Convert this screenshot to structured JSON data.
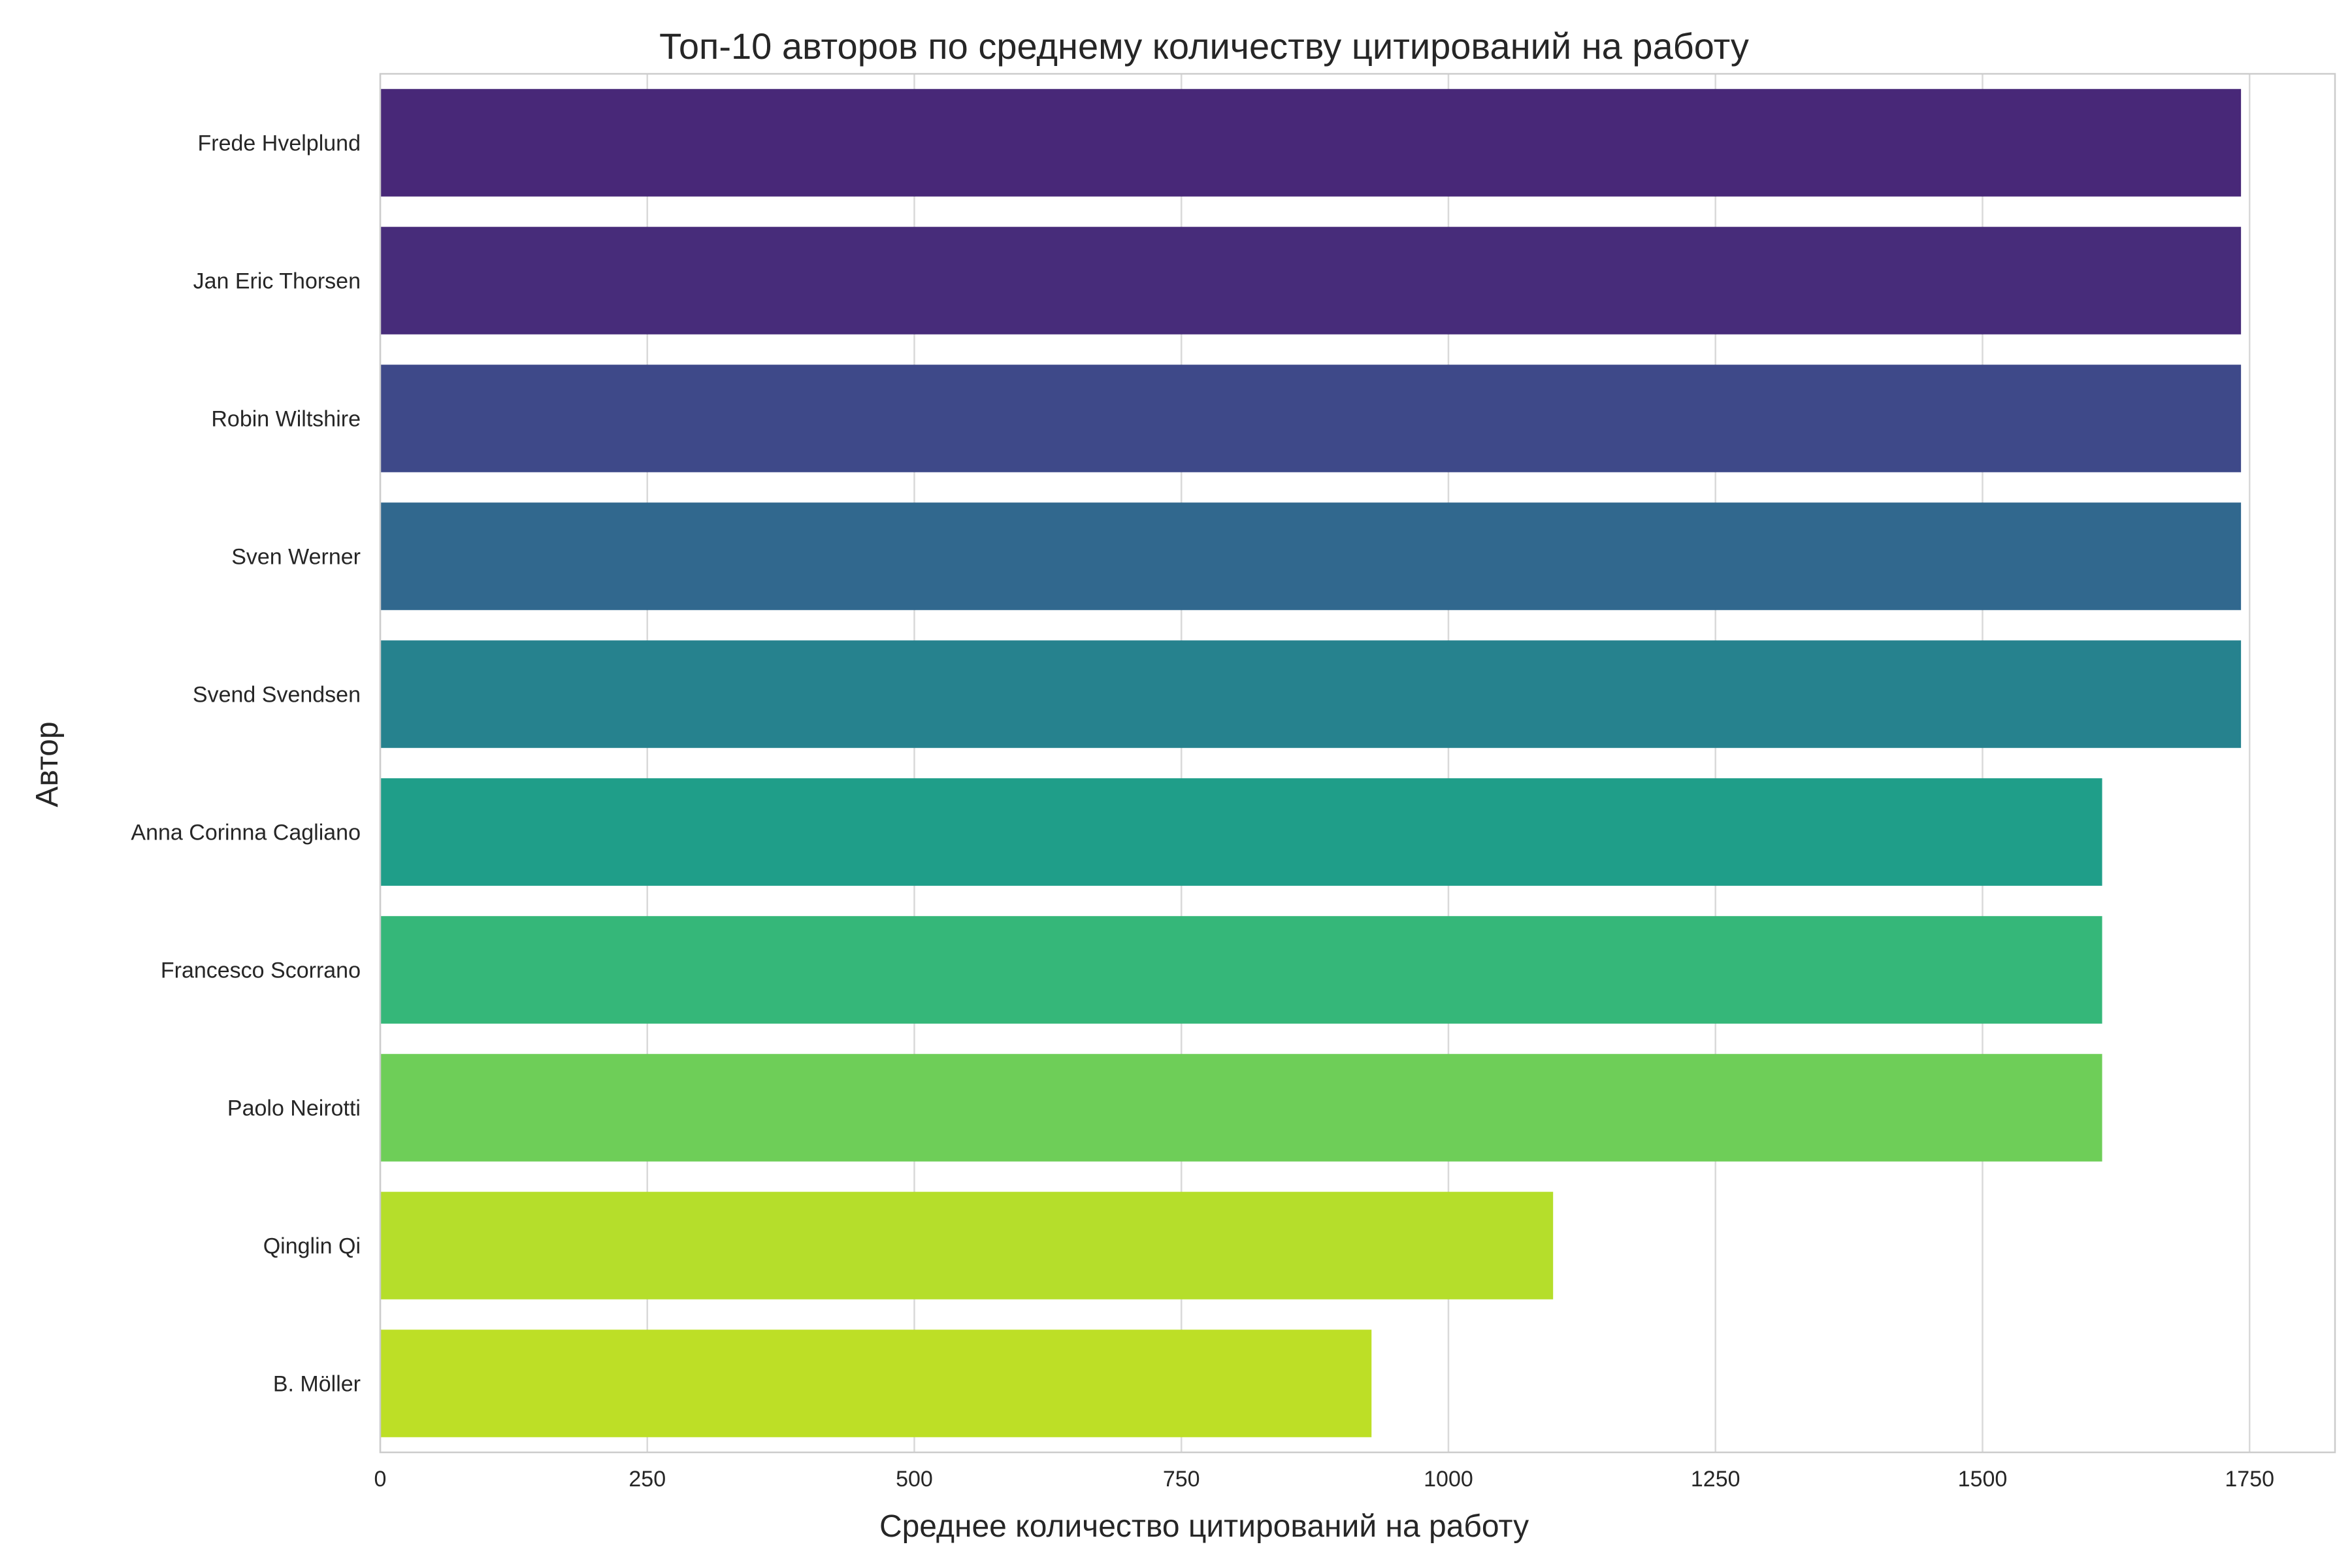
{
  "chart_data": {
    "type": "bar",
    "orientation": "horizontal",
    "title": "Топ-10 авторов по среднему количеству цитирований на работу",
    "xlabel": "Среднее количество цитирований на работу",
    "ylabel": "Автор",
    "xlim": [
      0,
      1830
    ],
    "xticks": [
      0,
      250,
      500,
      750,
      1000,
      1250,
      1500,
      1750
    ],
    "grid": true,
    "categories": [
      "Frede Hvelplund",
      "Jan Eric Thorsen",
      "Robin Wiltshire",
      "Sven Werner",
      "Svend Svendsen",
      "Anna Corinna Cagliano",
      "Francesco Scorrano",
      "Paolo Neirotti",
      "Qinglin Qi",
      "B. Möller"
    ],
    "values": [
      1742,
      1742,
      1742,
      1742,
      1742,
      1612,
      1612,
      1612,
      1098,
      928
    ],
    "colors": [
      "#482878",
      "#472c7a",
      "#3e4989",
      "#31688e",
      "#26828e",
      "#1f9e89",
      "#35b779",
      "#6ece58",
      "#b5de2b",
      "#bddf26"
    ]
  }
}
